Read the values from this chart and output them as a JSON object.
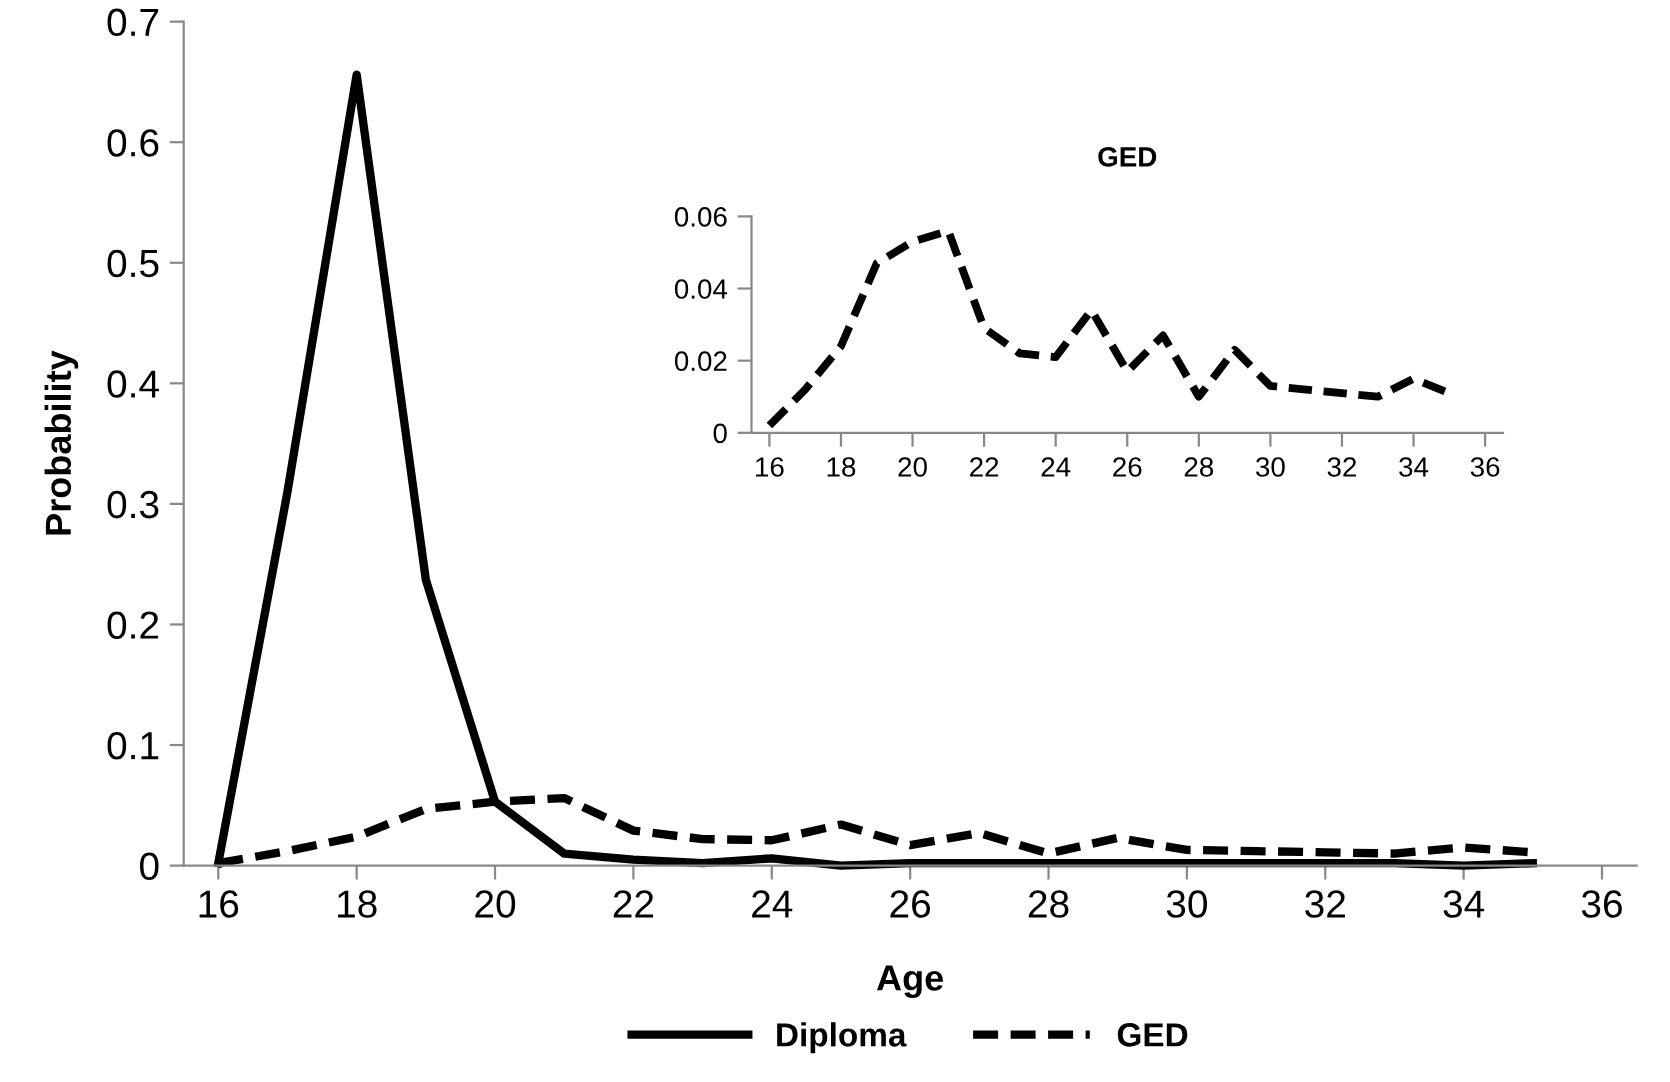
{
  "chart_data": [
    {
      "type": "line",
      "xlabel": "Age",
      "ylabel": "Probability",
      "x": [
        16,
        17,
        18,
        19,
        20,
        21,
        22,
        23,
        24,
        25,
        26,
        27,
        28,
        29,
        30,
        31,
        32,
        33,
        34,
        35
      ],
      "series": [
        {
          "name": "Diploma",
          "color": "#000000",
          "line_style": "solid",
          "values": [
            0.002,
            0.31,
            0.656,
            0.237,
            0.053,
            0.01,
            0.005,
            0.002,
            0.006,
            0.0,
            0.002,
            0.002,
            0.002,
            0.002,
            0.002,
            0.002,
            0.002,
            0.002,
            0.0,
            0.002
          ]
        },
        {
          "name": "GED",
          "color": "#000000",
          "line_style": "dashed",
          "values": [
            0.002,
            0.012,
            0.024,
            0.047,
            0.053,
            0.056,
            0.029,
            0.022,
            0.021,
            0.034,
            0.017,
            0.027,
            0.01,
            0.023,
            0.013,
            0.012,
            0.011,
            0.01,
            0.015,
            0.011
          ]
        }
      ],
      "xlim": [
        15.5,
        36.5
      ],
      "xticks": [
        16,
        18,
        20,
        22,
        24,
        26,
        28,
        30,
        32,
        34,
        36
      ],
      "ylim": [
        0,
        0.7
      ],
      "yticks": [
        0,
        0.1,
        0.2,
        0.3,
        0.4,
        0.5,
        0.6,
        0.7
      ],
      "grid": false,
      "legend": "bottom",
      "marker": "none"
    },
    {
      "type": "line",
      "title": "GED",
      "x": [
        16,
        17,
        18,
        19,
        20,
        21,
        22,
        23,
        24,
        25,
        26,
        27,
        28,
        29,
        30,
        31,
        32,
        33,
        34,
        35
      ],
      "series": [
        {
          "color": "#000000",
          "line_style": "dashed",
          "values": [
            0.002,
            0.012,
            0.024,
            0.047,
            0.053,
            0.056,
            0.029,
            0.022,
            0.021,
            0.034,
            0.017,
            0.027,
            0.01,
            0.023,
            0.013,
            0.012,
            0.011,
            0.01,
            0.015,
            0.011
          ]
        }
      ],
      "xlim": [
        15.5,
        36.5
      ],
      "xticks": [
        16,
        18,
        20,
        22,
        24,
        26,
        28,
        30,
        32,
        34,
        36
      ],
      "ylim": [
        0,
        0.06
      ],
      "yticks": [
        0,
        0.02,
        0.04,
        0.06
      ],
      "grid": false,
      "legend": false,
      "marker": "none"
    }
  ]
}
